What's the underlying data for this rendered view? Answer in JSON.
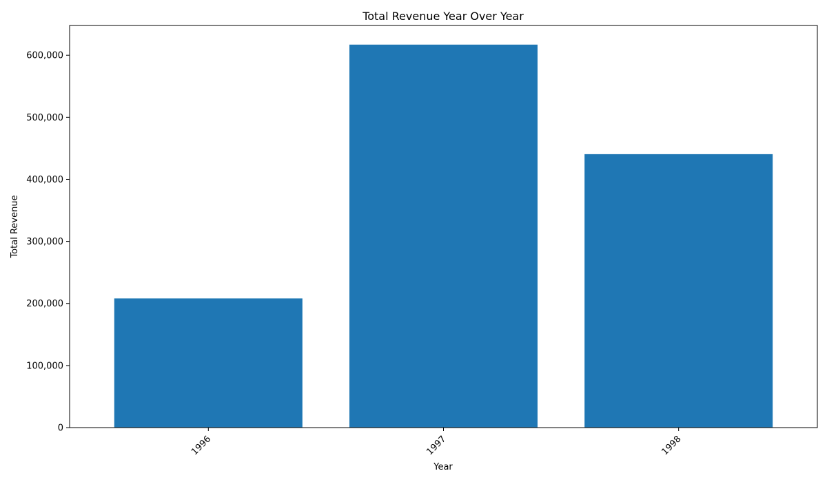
{
  "chart_data": {
    "type": "bar",
    "title": "Total Revenue Year Over Year",
    "xlabel": "Year",
    "ylabel": "Total Revenue",
    "categories": [
      "1996",
      "1997",
      "1998"
    ],
    "values": [
      208084,
      617085,
      440624
    ],
    "ylim": [
      0,
      647939
    ],
    "yticks": [
      0,
      100000,
      200000,
      300000,
      400000,
      500000,
      600000
    ],
    "ytick_labels": [
      "0",
      "100,000",
      "200,000",
      "300,000",
      "400,000",
      "500,000",
      "600,000"
    ],
    "bar_color": "#1f77b4",
    "grid": false,
    "legend": "none"
  }
}
